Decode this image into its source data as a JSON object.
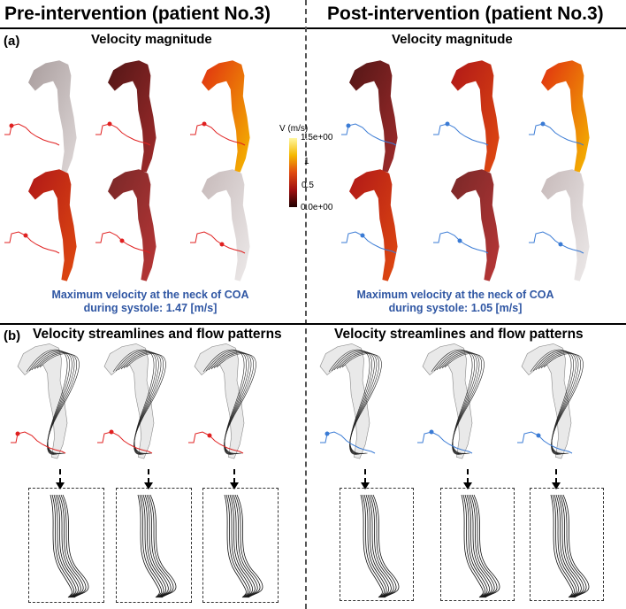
{
  "headers": {
    "pre": "Pre-intervention (patient No.3)",
    "post": "Post-intervention (patient No.3)"
  },
  "panel_a": {
    "label": "(a)",
    "title_left": "Velocity magnitude",
    "title_right": "Velocity magnitude",
    "caption_left_line1": "Maximum velocity at the neck of COA",
    "caption_left_line2": "during systole: 1.47 [m/s]",
    "caption_right_line1": "Maximum velocity at the neck of COA",
    "caption_right_line2": "during systole: 1.05 [m/s]"
  },
  "colorbar": {
    "title": "V (m/s)",
    "ticks": [
      "1.5e+00",
      "1",
      "0.5",
      "0.0e+00"
    ],
    "colors": [
      "#fff7a0",
      "#f5b800",
      "#e04a10",
      "#a01010",
      "#200000"
    ]
  },
  "panel_b": {
    "label": "(b)",
    "title_left": "Velocity streamlines and flow patterns",
    "title_right": "Velocity streamlines and flow patterns"
  },
  "colors": {
    "pre_waveform": "#e02020",
    "post_waveform": "#3a7bd5",
    "caption": "#2f56a3"
  },
  "icons": {
    "aorta_render": "aorta-render-icon",
    "waveform": "waveform-icon",
    "zoom_arrow": "arrow-down-icon"
  }
}
